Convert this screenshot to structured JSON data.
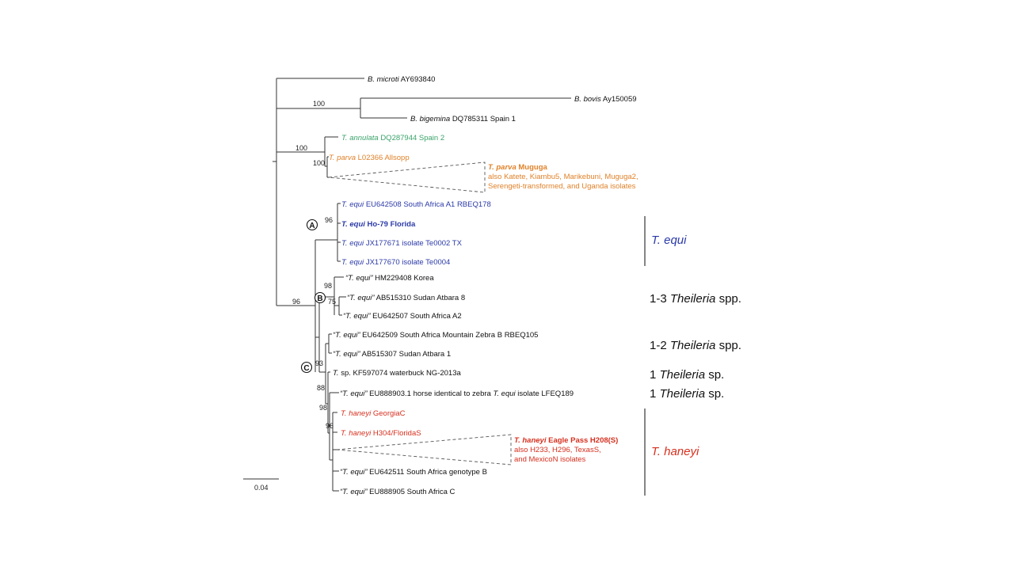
{
  "colors": {
    "black": "#111111",
    "green": "#3aa36a",
    "orange": "#e0822a",
    "blue": "#2b3aa8",
    "red": "#d6301f",
    "line": "#333333"
  },
  "leaves": {
    "microti": {
      "name": "B. microti",
      "acc": "AY693840"
    },
    "bovis": {
      "name": "B. bovis",
      "acc": "Ay150059"
    },
    "bigemina": {
      "name": "B. bigemina",
      "acc": "DQ785311 Spain 1"
    },
    "annulata": {
      "name": "T. annulata",
      "acc": "DQ287944 Spain 2"
    },
    "parva": {
      "name": "T. parva",
      "acc": "L02366 Allsopp"
    },
    "muguga": {
      "name": "T. parva",
      "acc": "Muguga",
      "line1": "also Katete, Kiambu5, Marikebuni, Muguga2,",
      "line2": "Serengeti-transformed, and Uganda isolates"
    },
    "equi_a1": {
      "name": "T. equi",
      "acc": "EU642508 South Africa A1 RBEQ178"
    },
    "equi_ho79": {
      "name": "T. equi",
      "acc": "Ho-79 Florida"
    },
    "equi_te0002": {
      "name": "T. equi",
      "acc": "JX177671 isolate Te0002 TX"
    },
    "equi_te0004": {
      "name": "T. equi",
      "acc": "JX177670 isolate Te0004"
    },
    "korea": {
      "name": "“T. equi”",
      "acc": "HM229408 Korea"
    },
    "atbara8": {
      "name": "“T. equi”",
      "acc": "AB515310 Sudan Atbara 8"
    },
    "sa_a2": {
      "name": "“T. equi”",
      "acc": "EU642507 South Africa A2"
    },
    "zebra_b": {
      "name": "“T. equi”",
      "acc": "EU642509 South Africa Mountain Zebra B RBEQ105"
    },
    "atbara1": {
      "name": "“T. equi”",
      "acc": "AB515307 Sudan Atbara 1"
    },
    "waterbuck": {
      "name": "T.",
      "acc": "sp. KF597074 waterbuck NG-2013a"
    },
    "lfeq189": {
      "name": "“T. equi”",
      "acc": "EU888903.1 horse identical to zebra",
      "name2": "T. equi",
      "acc2": "isolate LFEQ189"
    },
    "georgia": {
      "name": "T. haneyi",
      "acc": "GeorgiaC"
    },
    "florida": {
      "name": "T. haneyi",
      "acc": "H304/FloridaS"
    },
    "eaglepass": {
      "name": "T. haneyi",
      "acc": "Eagle Pass H208(S)",
      "line1": "also H233, H296, TexasS,",
      "line2": "and  MexicoN isolates"
    },
    "genotype_b": {
      "name": "“T. equi”",
      "acc": "EU642511 South Africa genotype B"
    },
    "sa_c": {
      "name": "“T. equi”",
      "acc": "EU888905 South Africa C"
    }
  },
  "support": {
    "babesia": "100",
    "annulata_parva": "100",
    "parva": "100",
    "equi_clade": "96",
    "b_clade": "98",
    "atbara8": "75",
    "root_theileria": "96",
    "c_clade": "93",
    "c_inner": "88",
    "haneyi_outer": "98",
    "haneyi": "96"
  },
  "clade_markers": {
    "a": "A",
    "b": "B",
    "c": "C"
  },
  "groups": {
    "t_equi": "T. equi",
    "theileria_1_3": {
      "count": "1-3",
      "genus": "Theileria",
      "suffix": "spp."
    },
    "theileria_1_2": {
      "count": "1-2",
      "genus": "Theileria",
      "suffix": "spp."
    },
    "theileria_1a": {
      "count": "1",
      "genus": "Theileria",
      "suffix": "sp."
    },
    "theileria_1b": {
      "count": "1",
      "genus": "Theileria",
      "suffix": "sp."
    },
    "t_haneyi": "T. haneyi"
  },
  "scale_bar": {
    "label": "0.04"
  }
}
